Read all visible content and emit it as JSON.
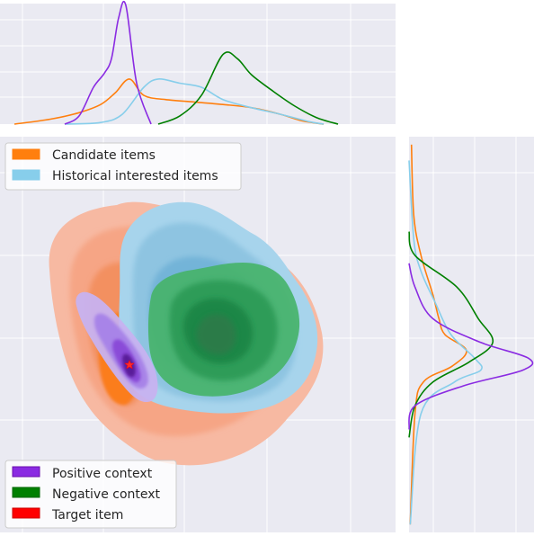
{
  "chart_data": {
    "type": "kde-jointplot",
    "title": "",
    "xlabel": "",
    "ylabel": "",
    "grid": true,
    "legends": [
      {
        "placement": "upper-left",
        "entries": [
          {
            "label": "Candidate items",
            "color": "#ff7f0e"
          },
          {
            "label": "Historical interested items",
            "color": "#87ceeb"
          }
        ]
      },
      {
        "placement": "lower-left",
        "entries": [
          {
            "label": "Positive context",
            "color": "#8a2be2"
          },
          {
            "label": "Negative context",
            "color": "#008000"
          },
          {
            "label": "Target item",
            "color": "#ff0000"
          }
        ]
      }
    ],
    "series": [
      {
        "name": "Candidate items",
        "color": "#ff7f0e",
        "fill": "#f4a582",
        "kind": "filled-kde",
        "center": [
          1.4,
          0.2
        ],
        "spread": [
          1.6,
          1.5
        ]
      },
      {
        "name": "Historical interested items",
        "color": "#87ceeb",
        "fill": "#8cc5e3",
        "kind": "filled-kde",
        "center": [
          2.2,
          0.6
        ],
        "spread": [
          1.3,
          1.1
        ]
      },
      {
        "name": "Negative context",
        "color": "#008000",
        "fill": "#3cb371",
        "kind": "filled-kde",
        "center": [
          2.5,
          0.4
        ],
        "spread": [
          0.9,
          0.7
        ]
      },
      {
        "name": "Positive context",
        "color": "#8a2be2",
        "fill": "#b299e6",
        "kind": "filled-kde",
        "center": [
          0.8,
          0.0
        ],
        "spread": [
          0.35,
          0.6
        ]
      },
      {
        "name": "Target item",
        "color": "#ff0000",
        "kind": "point",
        "x": 1.0,
        "y": -0.3
      }
    ],
    "marginal_x": {
      "x_range": [
        -0.5,
        5.0
      ],
      "curves": [
        {
          "name": "Candidate items",
          "color": "#ff7f0e",
          "x": [
            -0.3,
            0.2,
            0.6,
            0.9,
            1.1,
            1.3,
            1.5,
            1.8,
            2.2,
            2.6,
            3.0,
            3.4,
            3.7,
            4.0
          ],
          "y": [
            0.0,
            0.06,
            0.14,
            0.24,
            0.38,
            0.55,
            0.35,
            0.3,
            0.27,
            0.24,
            0.2,
            0.12,
            0.04,
            0.0
          ]
        },
        {
          "name": "Historical interested items",
          "color": "#87ceeb",
          "x": [
            0.4,
            0.9,
            1.2,
            1.5,
            1.7,
            2.0,
            2.3,
            2.6,
            3.0,
            3.4,
            3.8,
            4.0
          ],
          "y": [
            0.0,
            0.02,
            0.12,
            0.45,
            0.55,
            0.5,
            0.45,
            0.3,
            0.2,
            0.12,
            0.03,
            0.0
          ]
        },
        {
          "name": "Negative context",
          "color": "#008000",
          "x": [
            1.7,
            2.0,
            2.3,
            2.6,
            2.8,
            3.0,
            3.3,
            3.6,
            3.9,
            4.2
          ],
          "y": [
            0.0,
            0.1,
            0.35,
            0.85,
            0.8,
            0.6,
            0.4,
            0.22,
            0.08,
            0.0
          ]
        },
        {
          "name": "Positive context",
          "color": "#8a2be2",
          "x": [
            0.4,
            0.6,
            0.8,
            0.95,
            1.05,
            1.15,
            1.25,
            1.4,
            1.6
          ],
          "y": [
            0.0,
            0.1,
            0.45,
            0.62,
            0.8,
            1.3,
            1.45,
            0.5,
            0.0
          ]
        }
      ]
    },
    "marginal_y": {
      "y_range": [
        -2.5,
        2.5
      ],
      "curves": [
        {
          "name": "Candidate items",
          "color": "#ff7f0e",
          "y": [
            2.4,
            1.5,
            1.0,
            0.5,
            0.2,
            0.0,
            -0.2,
            -0.4,
            -0.6,
            -1.0,
            -2.4
          ],
          "x": [
            0.02,
            0.04,
            0.1,
            0.2,
            0.25,
            0.3,
            0.48,
            0.36,
            0.12,
            0.05,
            0.01
          ]
        },
        {
          "name": "Historical interested items",
          "color": "#87ceeb",
          "y": [
            2.2,
            1.2,
            0.8,
            0.4,
            0.0,
            -0.3,
            -0.45,
            -0.6,
            -1.0,
            -2.4
          ],
          "x": [
            0.0,
            0.04,
            0.1,
            0.22,
            0.35,
            0.55,
            0.6,
            0.38,
            0.1,
            0.01
          ]
        },
        {
          "name": "Negative context",
          "color": "#008000",
          "y": [
            1.3,
            1.0,
            0.6,
            0.2,
            -0.1,
            -0.35,
            -0.6,
            -0.9,
            -1.3
          ],
          "x": [
            0.0,
            0.05,
            0.4,
            0.58,
            0.7,
            0.5,
            0.2,
            0.05,
            0.0
          ]
        },
        {
          "name": "Positive context",
          "color": "#8a2be2",
          "y": [
            0.9,
            0.6,
            0.2,
            -0.1,
            -0.3,
            -0.45,
            -0.65,
            -0.9,
            -1.2
          ],
          "x": [
            0.0,
            0.05,
            0.2,
            0.6,
            1.0,
            0.95,
            0.45,
            0.05,
            0.0
          ]
        }
      ]
    }
  }
}
